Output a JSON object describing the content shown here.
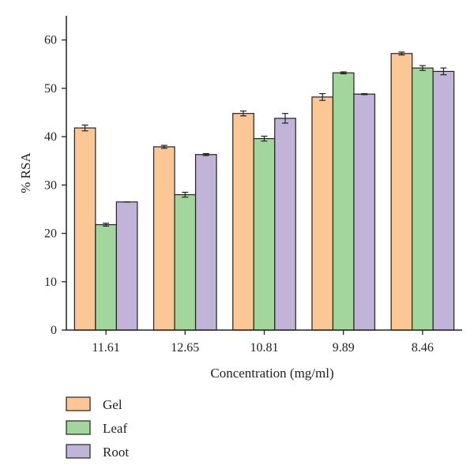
{
  "chart_data": {
    "type": "bar",
    "categories": [
      "11.61",
      "12.65",
      "10.81",
      "9.89",
      "8.46"
    ],
    "series": [
      {
        "name": "Gel",
        "color": "#fdc795",
        "values": [
          41.8,
          37.9,
          44.8,
          48.2,
          57.2
        ],
        "errors": [
          0.6,
          0.3,
          0.5,
          0.7,
          0.3
        ]
      },
      {
        "name": "Leaf",
        "color": "#a3d69c",
        "values": [
          21.8,
          28.0,
          39.6,
          53.2,
          54.2
        ],
        "errors": [
          0.3,
          0.5,
          0.5,
          0.2,
          0.5
        ]
      },
      {
        "name": "Root",
        "color": "#c2b3d8",
        "values": [
          26.5,
          36.3,
          43.8,
          48.8,
          53.5
        ],
        "errors": [
          0.0,
          0.2,
          1.0,
          0.1,
          0.7
        ]
      }
    ],
    "xlabel": "Concentration (mg/ml)",
    "ylabel": "% RSA",
    "ylim": [
      0,
      65
    ],
    "yticks": [
      0,
      10,
      20,
      30,
      40,
      50,
      60
    ],
    "legend_position": "bottom-left",
    "grid": false
  }
}
